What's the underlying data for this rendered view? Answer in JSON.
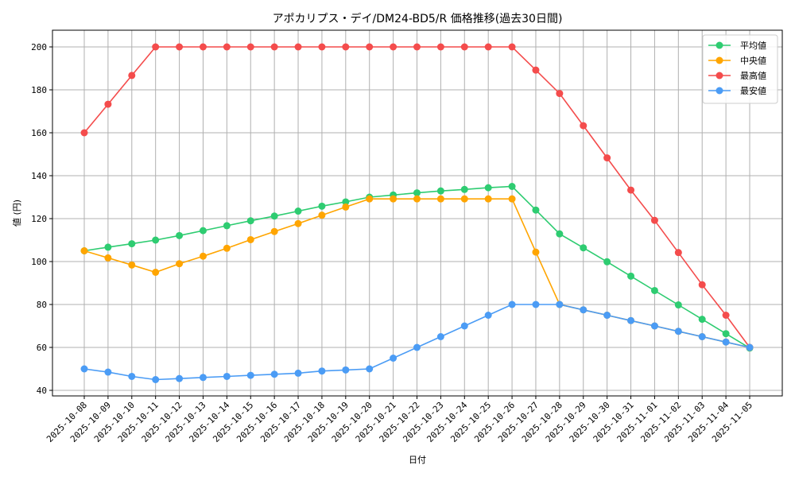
{
  "chart_data": {
    "type": "line",
    "title": "アポカリプス・デイ/DM24-BD5/R 価格推移(過去30日間)",
    "xlabel": "日付",
    "ylabel": "値 (円)",
    "ylim": [
      37,
      207
    ],
    "yticks": [
      40,
      60,
      80,
      100,
      120,
      140,
      160,
      180,
      200
    ],
    "grid": true,
    "legend_position": "upper right",
    "x": [
      "2025-10-08",
      "2025-10-09",
      "2025-10-10",
      "2025-10-11",
      "2025-10-12",
      "2025-10-13",
      "2025-10-14",
      "2025-10-15",
      "2025-10-16",
      "2025-10-17",
      "2025-10-18",
      "2025-10-19",
      "2025-10-20",
      "2025-10-21",
      "2025-10-22",
      "2025-10-23",
      "2025-10-24",
      "2025-10-25",
      "2025-10-26",
      "2025-10-27",
      "2025-10-28",
      "2025-10-29",
      "2025-10-30",
      "2025-10-31",
      "2025-11-01",
      "2025-11-02",
      "2025-11-03",
      "2025-11-04",
      "2025-11-05"
    ],
    "series": [
      {
        "name": "平均値",
        "color": "#2ecc71",
        "values": [
          105,
          106.7,
          108.3,
          110,
          112.1,
          114.4,
          116.7,
          119,
          121.2,
          123.5,
          125.8,
          127.8,
          130,
          131,
          132,
          132.9,
          133.6,
          134.4,
          135,
          124,
          112.9,
          106.4,
          99.9,
          93.2,
          86.5,
          79.8,
          73.1,
          66.4,
          59.7
        ]
      },
      {
        "name": "中央値",
        "color": "#ffa500",
        "values": [
          105,
          101.7,
          98.4,
          95,
          99,
          102.5,
          106.2,
          110.2,
          114,
          117.7,
          121.6,
          125.4,
          129.2,
          129.2,
          129.2,
          129.2,
          129.2,
          129.2,
          129.2,
          104.4,
          80,
          77.5,
          75,
          72.5,
          70,
          67.5,
          65,
          62.5,
          60
        ]
      },
      {
        "name": "最高値",
        "color": "#f44c4c",
        "values": [
          160,
          173.3,
          186.7,
          200,
          200,
          200,
          200,
          200,
          200,
          200,
          200,
          200,
          200,
          200,
          200,
          200,
          200,
          200,
          200,
          189.2,
          178.3,
          163.3,
          148.3,
          133.3,
          119.2,
          104.2,
          89.2,
          75,
          60
        ]
      },
      {
        "name": "最安値",
        "color": "#4b9cf5",
        "values": [
          50,
          48.5,
          46.5,
          45,
          45.5,
          46,
          46.5,
          47,
          47.5,
          48,
          49,
          49.5,
          50,
          55,
          60,
          65,
          70,
          75,
          80,
          80,
          80,
          77.5,
          75,
          72.5,
          70,
          67.5,
          65,
          62.5,
          60
        ]
      }
    ]
  }
}
